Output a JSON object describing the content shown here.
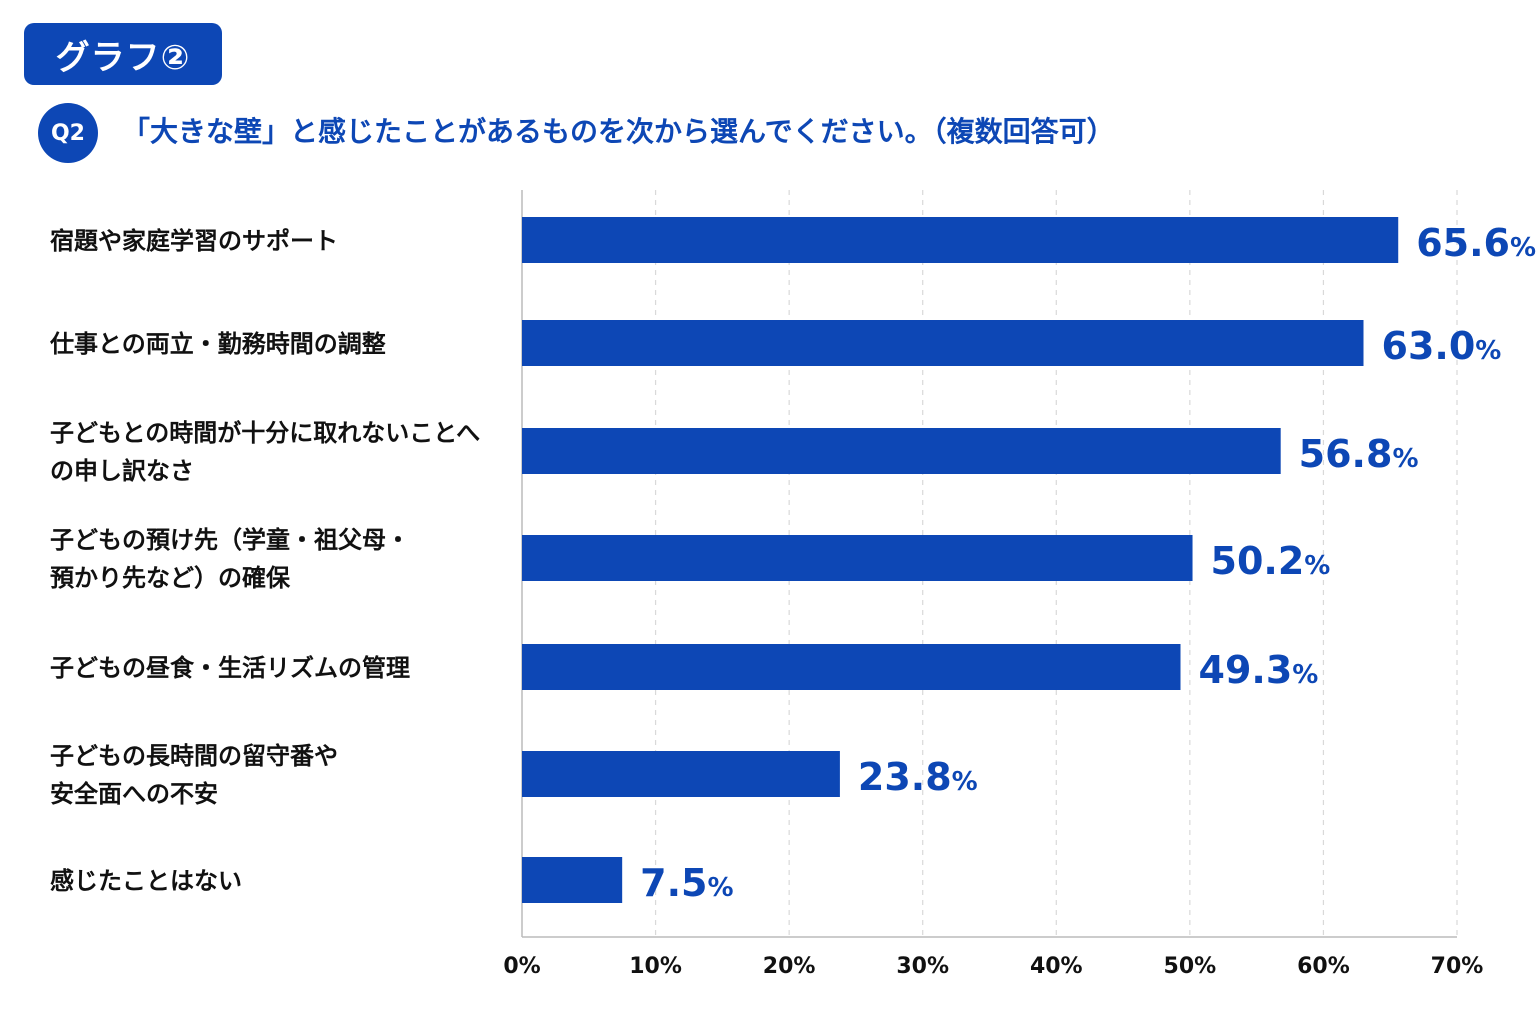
{
  "header": {
    "badge": "グラフ②",
    "question_number": "Q2",
    "question": "「大きな壁」と感じたことがあるものを次から選んでください。（複数回答可）"
  },
  "colors": {
    "accent": "#0d47b5",
    "grid": "#d9d9d9",
    "axis": "#bbbbbb"
  },
  "chart_data": {
    "type": "bar",
    "orientation": "horizontal",
    "categories": [
      [
        "宿題や家庭学習のサポート"
      ],
      [
        "仕事との両立・勤務時間の調整"
      ],
      [
        "子どもとの時間が十分に取れないことへ",
        "の申し訳なさ"
      ],
      [
        "子どもの預け先（学童・祖父母・",
        "預かり先など）の確保"
      ],
      [
        "子どもの昼食・生活リズムの管理"
      ],
      [
        "子どもの長時間の留守番や",
        "安全面への不安"
      ],
      [
        "感じたことはない"
      ]
    ],
    "values": [
      65.6,
      63.0,
      56.8,
      50.2,
      49.3,
      23.8,
      7.5
    ],
    "value_labels": [
      "65.6",
      "63.0",
      "56.8",
      "50.2",
      "49.3",
      "23.8",
      "7.5"
    ],
    "value_unit": "%",
    "xlim": [
      0,
      70
    ],
    "xticks": [
      0,
      10,
      20,
      30,
      40,
      50,
      60,
      70
    ],
    "xtick_labels": [
      "0%",
      "10%",
      "20%",
      "30%",
      "40%",
      "50%",
      "60%",
      "70%"
    ],
    "grid": "vertical dashed"
  }
}
